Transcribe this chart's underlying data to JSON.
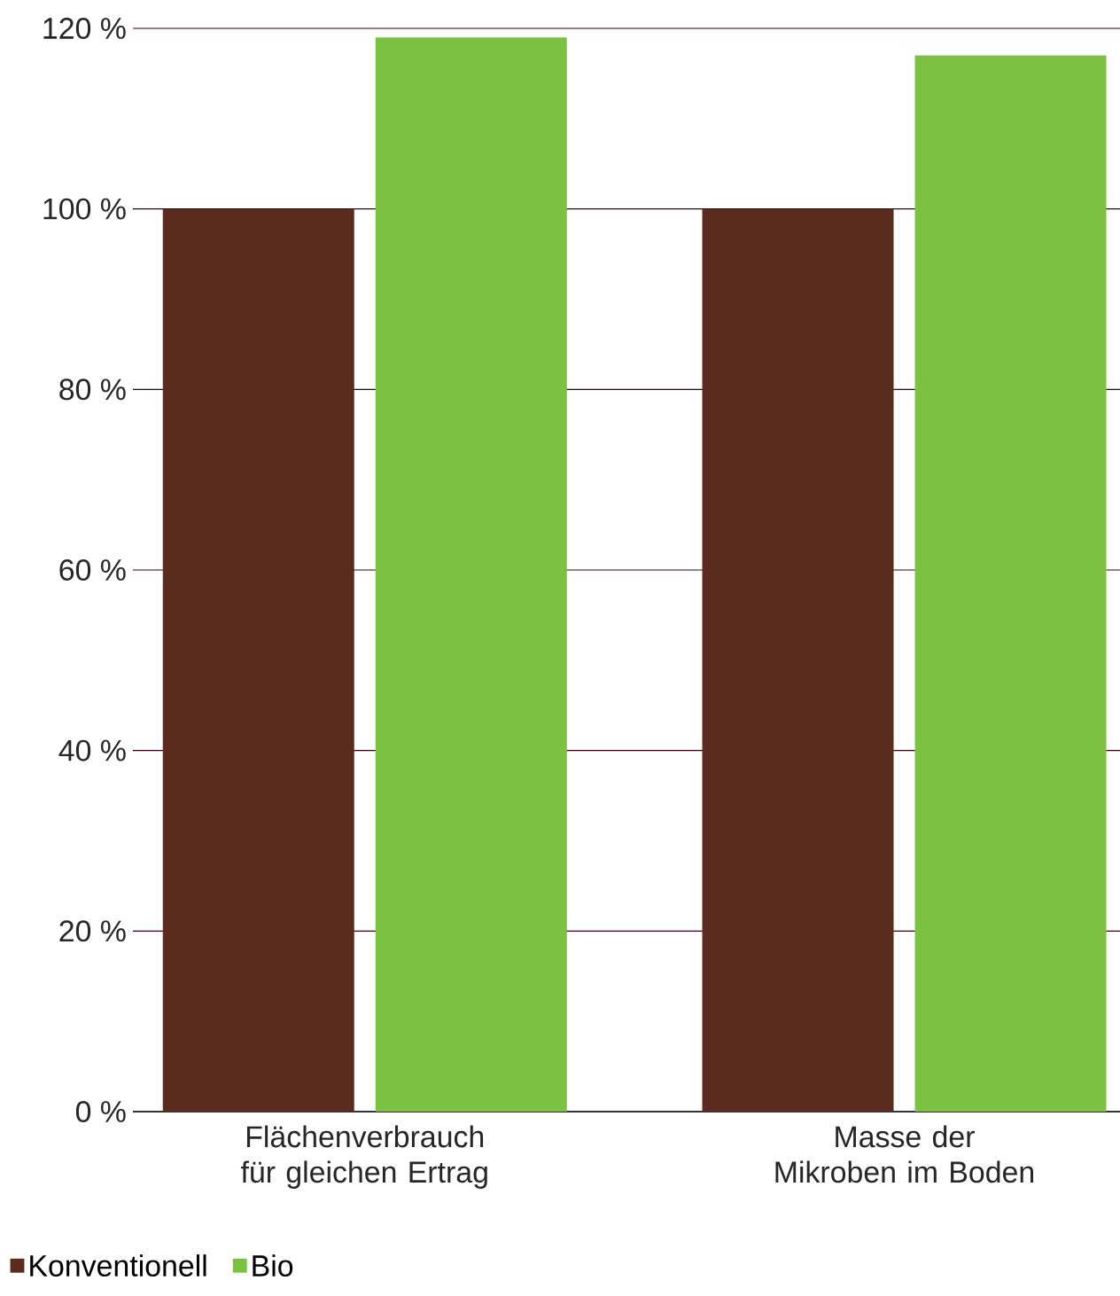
{
  "chart_data": {
    "type": "bar",
    "categories": [
      "Flächenverbrauch für gleichen Ertrag",
      "Masse der Mikroben im Boden"
    ],
    "series": [
      {
        "name": "Konventionell",
        "color": "#5b2b1f",
        "values": [
          100,
          100
        ]
      },
      {
        "name": "Bio",
        "color": "#7cc242",
        "values": [
          119,
          117
        ]
      }
    ],
    "ylim": [
      0,
      120
    ],
    "yticks": [
      {
        "value": 0,
        "label": "0 %"
      },
      {
        "value": 20,
        "label": "20 %"
      },
      {
        "value": 40,
        "label": "40 %"
      },
      {
        "value": 60,
        "label": "60 %"
      },
      {
        "value": 80,
        "label": "80 %"
      },
      {
        "value": 100,
        "label": "100 %"
      },
      {
        "value": 120,
        "label": "120 %"
      }
    ],
    "grid": "y",
    "legend": "bottom left"
  }
}
